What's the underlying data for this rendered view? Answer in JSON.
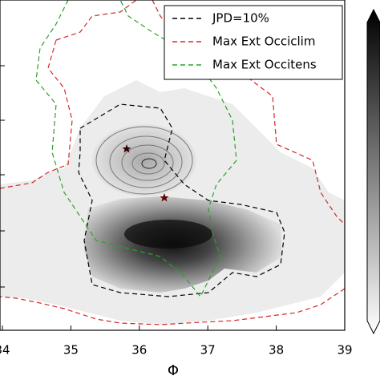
{
  "chart_data": {
    "type": "contour",
    "xlabel": "Φ",
    "xlim": [
      34,
      39
    ],
    "xticks": [
      34,
      35,
      36,
      37,
      38,
      39
    ],
    "series": [
      {
        "name": "JPD=10%",
        "color": "#000000"
      },
      {
        "name": "Max Ext Occiclim",
        "color": "#d62728"
      },
      {
        "name": "Max Ext Occitens",
        "color": "#2ca02c"
      }
    ],
    "legend": "upper right"
  }
}
